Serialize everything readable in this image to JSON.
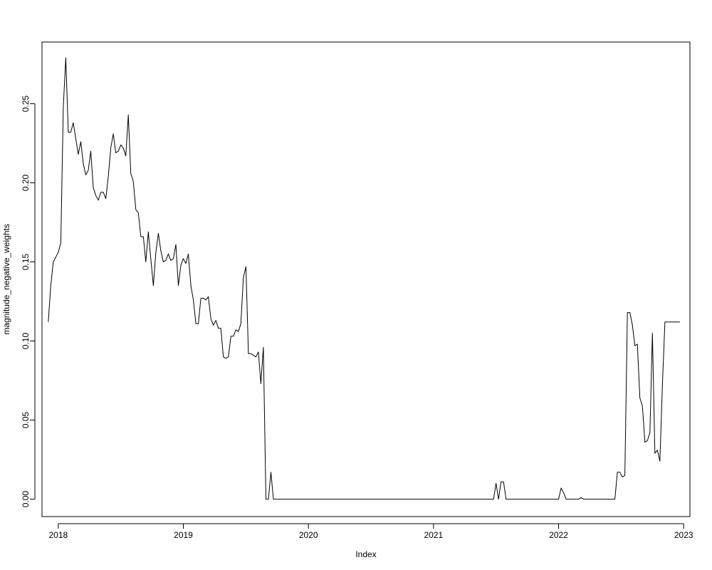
{
  "chart_data": {
    "type": "line",
    "title": "",
    "xlabel": "Index",
    "ylabel": "magnitude_negative_weights",
    "xlim": [
      2017.87,
      2023.05
    ],
    "ylim": [
      -0.011,
      0.289
    ],
    "grid": false,
    "legend": "none",
    "x_ticks": [
      2018,
      2019,
      2020,
      2021,
      2022,
      2023
    ],
    "x_tick_labels": [
      "2018",
      "2019",
      "2020",
      "2021",
      "2022",
      "2023"
    ],
    "y_ticks": [
      0.0,
      0.05,
      0.1,
      0.15,
      0.2,
      0.25
    ],
    "y_tick_labels": [
      "0.00",
      "0.05",
      "0.10",
      "0.15",
      "0.20",
      "0.25"
    ],
    "line_color": "#000000",
    "series": [
      {
        "x": [
          2017.92,
          2017.94,
          2017.96,
          2017.98,
          2018.0,
          2018.02,
          2018.04,
          2018.06,
          2018.08,
          2018.1,
          2018.12,
          2018.14,
          2018.16,
          2018.18,
          2018.2,
          2018.22,
          2018.24,
          2018.26,
          2018.28,
          2018.3,
          2018.32,
          2018.34,
          2018.36,
          2018.38,
          2018.4,
          2018.42,
          2018.44,
          2018.46,
          2018.48,
          2018.5,
          2018.52,
          2018.54,
          2018.56,
          2018.58,
          2018.6,
          2018.62,
          2018.64,
          2018.66,
          2018.68,
          2018.7,
          2018.72,
          2018.74,
          2018.76,
          2018.78,
          2018.8,
          2018.82,
          2018.84,
          2018.86,
          2018.88,
          2018.9,
          2018.92,
          2018.94,
          2018.96,
          2018.98,
          2019.0,
          2019.02,
          2019.04,
          2019.06,
          2019.08,
          2019.1,
          2019.12,
          2019.14,
          2019.16,
          2019.18,
          2019.2,
          2019.22,
          2019.24,
          2019.26,
          2019.28,
          2019.3,
          2019.32,
          2019.34,
          2019.36,
          2019.38,
          2019.4,
          2019.42,
          2019.44,
          2019.46,
          2019.48,
          2019.5,
          2019.52,
          2019.54,
          2019.56,
          2019.58,
          2019.6,
          2019.62,
          2019.64,
          2019.66,
          2019.68,
          2019.7,
          2019.72,
          2019.74,
          2019.76,
          2019.78,
          2019.8,
          2019.82,
          2019.84,
          2019.86,
          2019.88,
          2019.9,
          2019.92,
          2019.94,
          2019.96,
          2019.98,
          2020.0,
          2020.02,
          2020.04,
          2020.06,
          2020.08,
          2020.1,
          2020.12,
          2020.14,
          2020.16,
          2020.18,
          2020.2,
          2020.22,
          2020.24,
          2020.26,
          2020.28,
          2020.3,
          2021.48,
          2021.5,
          2021.52,
          2021.54,
          2021.56,
          2021.58,
          2021.6,
          2021.62,
          2021.64,
          2022.0,
          2022.02,
          2022.04,
          2022.06,
          2022.08,
          2022.12,
          2022.16,
          2022.18,
          2022.2,
          2022.22,
          2022.26,
          2022.45,
          2022.47,
          2022.49,
          2022.51,
          2022.53,
          2022.55,
          2022.57,
          2022.59,
          2022.61,
          2022.63,
          2022.65,
          2022.67,
          2022.69,
          2022.71,
          2022.73,
          2022.75,
          2022.77,
          2022.79,
          2022.81,
          2022.83,
          2022.85,
          2022.87,
          2022.89,
          2022.91,
          2022.93,
          2022.95,
          2022.97
        ],
        "y": [
          0.112,
          0.135,
          0.15,
          0.153,
          0.156,
          0.162,
          0.248,
          0.279,
          0.232,
          0.232,
          0.238,
          0.228,
          0.218,
          0.226,
          0.212,
          0.205,
          0.208,
          0.22,
          0.197,
          0.192,
          0.189,
          0.194,
          0.194,
          0.19,
          0.204,
          0.222,
          0.231,
          0.219,
          0.22,
          0.224,
          0.222,
          0.217,
          0.243,
          0.206,
          0.201,
          0.183,
          0.181,
          0.166,
          0.166,
          0.15,
          0.169,
          0.152,
          0.135,
          0.156,
          0.168,
          0.157,
          0.15,
          0.151,
          0.155,
          0.151,
          0.152,
          0.161,
          0.135,
          0.148,
          0.152,
          0.149,
          0.155,
          0.135,
          0.126,
          0.111,
          0.111,
          0.127,
          0.127,
          0.126,
          0.128,
          0.114,
          0.11,
          0.113,
          0.108,
          0.108,
          0.09,
          0.089,
          0.09,
          0.103,
          0.103,
          0.107,
          0.106,
          0.111,
          0.14,
          0.147,
          0.092,
          0.092,
          0.091,
          0.09,
          0.093,
          0.073,
          0.096,
          0.0,
          0.0,
          0.017,
          0.0,
          0.0,
          0.0,
          0.0,
          0.0,
          0.0,
          0.0,
          0.0,
          0.0,
          0.0,
          0.0,
          0.0,
          0.0,
          0.0,
          0.0,
          0.0,
          0.0,
          0.0,
          0.0,
          0.0,
          0.0,
          0.0,
          0.0,
          0.0,
          0.0,
          0.0,
          0.0,
          0.0,
          0.0,
          0.0,
          0.0,
          0.01,
          0.0,
          0.011,
          0.011,
          0.0,
          0.0,
          0.0,
          0.0,
          0.0,
          0.007,
          0.004,
          0.0,
          0.0,
          0.0,
          0.0,
          0.001,
          0.0,
          0.0,
          0.0,
          0.0,
          0.017,
          0.017,
          0.014,
          0.015,
          0.118,
          0.118,
          0.11,
          0.097,
          0.098,
          0.064,
          0.059,
          0.036,
          0.037,
          0.042,
          0.105,
          0.029,
          0.031,
          0.024,
          0.073,
          0.112,
          0.112,
          0.112,
          0.112,
          0.112,
          0.112,
          0.112
        ]
      }
    ]
  }
}
